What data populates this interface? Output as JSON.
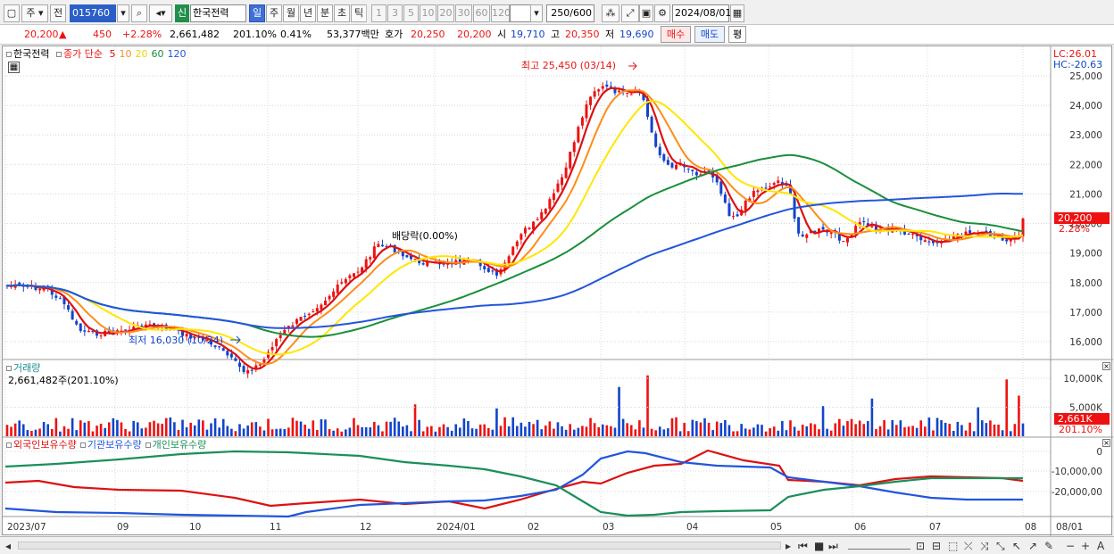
{
  "toolbar": {
    "market": "주",
    "kind": "전",
    "code": "015760",
    "tag": "신",
    "name": "한국전력",
    "periods": [
      "일",
      "주",
      "월",
      "년",
      "분",
      "초",
      "틱"
    ],
    "active_period": "일",
    "intervals": [
      "1",
      "3",
      "5",
      "10",
      "20",
      "30",
      "60",
      "120"
    ],
    "count": "250",
    "count_max": "/600",
    "date": "2024/08/01"
  },
  "quote": {
    "price": "20,200",
    "arrow": "▲",
    "change": "450",
    "change_pct": "+2.28%",
    "volume": "2,661,482",
    "volume_ratio": "201.10%",
    "turnover": "0.41%",
    "amount": "53,377백만",
    "bid_label": "호가",
    "bid1": "20,250",
    "bid2": "20,200",
    "open_label": "시",
    "open": "19,710",
    "high_label": "고",
    "high": "20,350",
    "low_label": "저",
    "low": "19,690",
    "buy_button": "매수",
    "sell_button": "매도",
    "eval_button": "평"
  },
  "price_panel": {
    "title": "한국전력",
    "legend_prefix": "종가 단순",
    "ma": [
      {
        "label": "5",
        "color": "#dd1111"
      },
      {
        "label": "10",
        "color": "#ff8c1a"
      },
      {
        "label": "20",
        "color": "#e8d900"
      },
      {
        "label": "60",
        "color": "#1a8f3a"
      },
      {
        "label": "120",
        "color": "#2255dd"
      }
    ],
    "lc": "LC:26.01",
    "hc": "HC:-20.63",
    "y_ticks": [
      "25,000",
      "24,000",
      "23,000",
      "22,000",
      "21,000",
      "20,000",
      "19,000",
      "18,000",
      "17,000",
      "16,000"
    ],
    "current_price": "20,200",
    "current_pct": "2.28%",
    "high_annot": "최고 25,450 (03/14)",
    "low_annot": "최저 16,030 (10/24)",
    "dividend_annot": "배당락(0.00%)"
  },
  "volume_panel": {
    "title": "거래량",
    "value": "2,661,482주(201.10%)",
    "y_ticks": [
      "10,000K",
      "5,000K"
    ],
    "current": "2,661K",
    "current_pct": "201.10%"
  },
  "holding_panel": {
    "series": [
      {
        "label": "외국인보유수량",
        "color": "#dd1111"
      },
      {
        "label": "기관보유수량",
        "color": "#2255dd"
      },
      {
        "label": "개인보유수량",
        "color": "#1a8f5a"
      }
    ],
    "y_ticks": [
      "0",
      "-10,000,00",
      "-20,000,00"
    ]
  },
  "x_axis": [
    "2023/07",
    "09",
    "10",
    "11",
    "12",
    "2024/01",
    "02",
    "03",
    "04",
    "05",
    "06",
    "07",
    "08"
  ],
  "x_axis_right": "08/01",
  "colors": {
    "up": "#e11",
    "down": "#1144cc",
    "selected": "#3d6fd6"
  }
}
